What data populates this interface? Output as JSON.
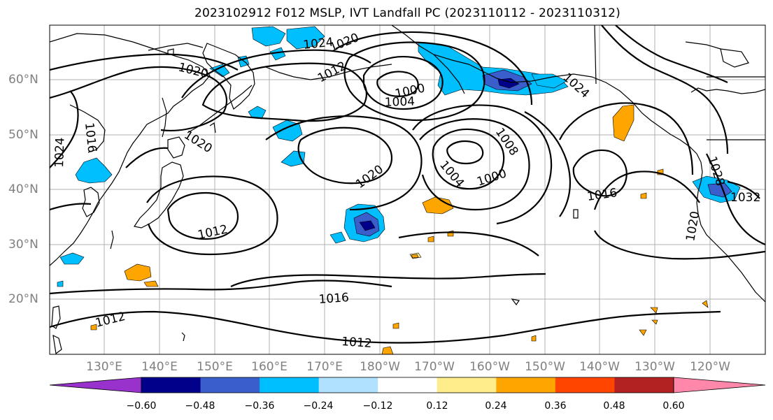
{
  "title": "2023102912 F012 MSLP, IVT Landfall PC (2023110112 - 2023110312)",
  "lat_labels": [
    "60°N",
    "50°N",
    "40°N",
    "30°N",
    "20°N"
  ],
  "lon_labels": [
    "130°E",
    "140°E",
    "150°E",
    "160°E",
    "170°E",
    "180°W",
    "170°W",
    "160°W",
    "150°W",
    "140°W",
    "130°W",
    "120°W"
  ],
  "contour_labels": [
    "1020",
    "1024",
    "1020",
    "1012",
    "1000",
    "1004",
    "1024",
    "1016",
    "1024",
    "1020",
    "1020",
    "1004",
    "1000",
    "1008",
    "1012",
    "1016",
    "1028",
    "1032",
    "1020",
    "1016",
    "1012",
    "1012"
  ],
  "colorbar": {
    "ticks": [
      "−0.60",
      "−0.48",
      "−0.36",
      "−0.24",
      "−0.12",
      "0.12",
      "0.24",
      "0.36",
      "0.48",
      "0.60"
    ],
    "colors": [
      "#9932cc",
      "#00008b",
      "#3a5fcd",
      "#00bfff",
      "#b0e2ff",
      "#ffffff",
      "#ffec8b",
      "#ffa500",
      "#ff4500",
      "#b22222",
      "#ff88aa"
    ]
  }
}
